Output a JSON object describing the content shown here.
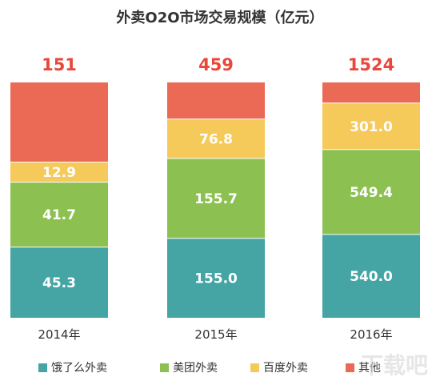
{
  "chart_data": {
    "type": "bar",
    "stacked": true,
    "normalized_100_percent": true,
    "title": "外卖O2O市场交易规模（亿元）",
    "categories": [
      "2014年",
      "2015年",
      "2016年"
    ],
    "totals": [
      "151",
      "459",
      "1524"
    ],
    "series": [
      {
        "name": "饿了么外卖",
        "color": "#45A4A4",
        "values": [
          45.3,
          155.0,
          540.0
        ],
        "labels": [
          "45.3",
          "155.0",
          "540.0"
        ]
      },
      {
        "name": "美团外卖",
        "color": "#8CC152",
        "values": [
          41.7,
          155.7,
          549.4
        ],
        "labels": [
          "41.7",
          "155.7",
          "549.4"
        ]
      },
      {
        "name": "百度外卖",
        "color": "#F6CA5A",
        "values": [
          12.9,
          76.8,
          301.0
        ],
        "labels": [
          "12.9",
          "76.8",
          "301.0"
        ]
      },
      {
        "name": "其他",
        "color": "#EA6A55",
        "values": [
          51.1,
          71.5,
          133.6
        ],
        "labels": [
          "",
          "",
          ""
        ]
      }
    ],
    "legend_position": "bottom",
    "grid": false,
    "total_color": "#E8473A"
  },
  "watermark": "下载吧"
}
